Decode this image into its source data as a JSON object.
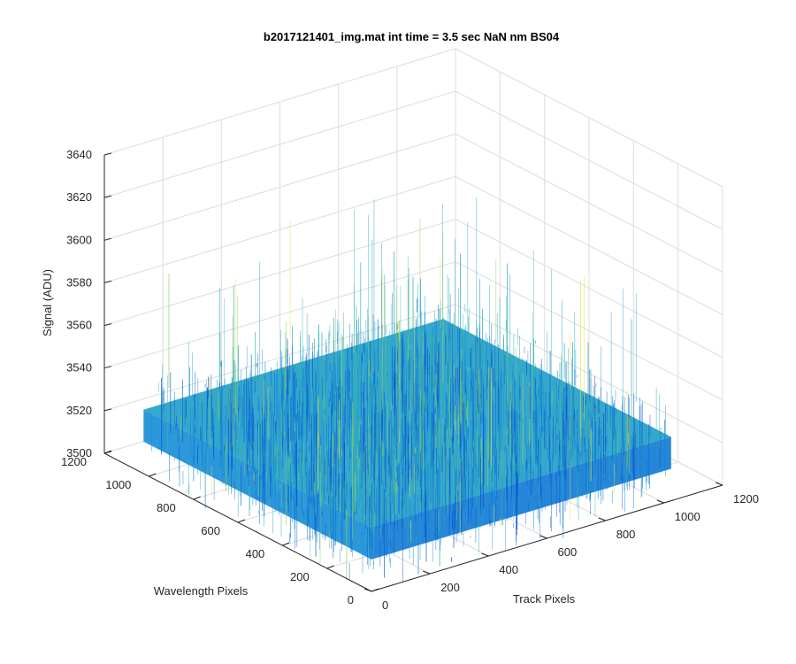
{
  "chart_data": {
    "type": "surface",
    "title": "b2017121401_img.mat int time = 3.5 sec  NaN nm BS04",
    "xlabel": "Track Pixels",
    "ylabel": "Wavelength Pixels",
    "zlabel": "Signal (ADU)",
    "xlim": [
      0,
      1200
    ],
    "ylim": [
      0,
      1200
    ],
    "zlim": [
      3500,
      3640
    ],
    "x_ticks": [
      0,
      200,
      400,
      600,
      800,
      1000,
      1200
    ],
    "y_ticks": [
      0,
      200,
      400,
      600,
      800,
      1000,
      1200
    ],
    "z_ticks": [
      3500,
      3520,
      3540,
      3560,
      3580,
      3600,
      3620,
      3640
    ],
    "data_extent": {
      "x": [
        0,
        1024
      ],
      "y": [
        0,
        1024
      ]
    },
    "signal_mean": 3525,
    "signal_range": [
      3500,
      3600
    ],
    "grid": true,
    "colormap": [
      "#0a5ad2",
      "#1a86e0",
      "#22a6c8",
      "#3ab8a8",
      "#8ccd5a",
      "#e6e03c"
    ]
  }
}
